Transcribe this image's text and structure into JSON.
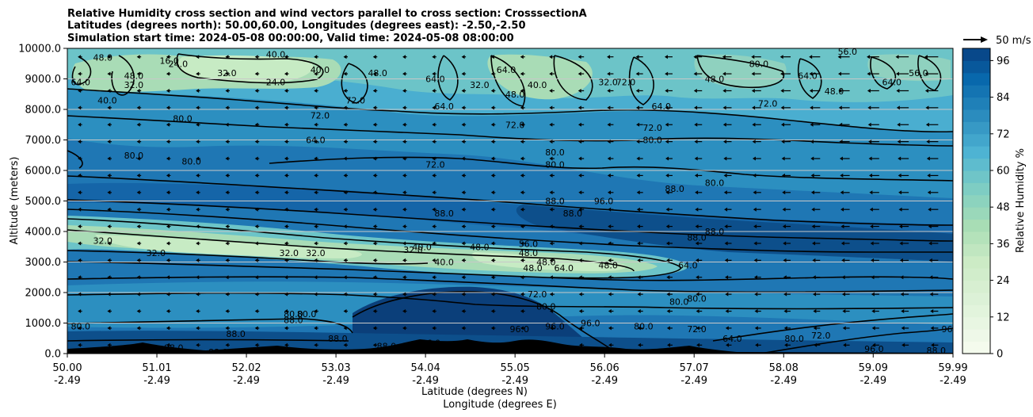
{
  "chart_data": {
    "type": "heatmap",
    "title_lines": [
      "Relative Humidity cross section and wind vectors parallel to cross section: CrosssectionA",
      "Latitudes (degrees north): 50.00,60.00, Longitudes (degrees east): -2.50,-2.50",
      "Simulation start time: 2024-05-08 00:00:00, Valid time: 2024-05-08 08:00:00"
    ],
    "ylabel": "Altitude (meters)",
    "xlabel_lat": "Latitude (degrees N)",
    "xlabel_lon": "Longitude (degrees E)",
    "x_range": [
      50.0,
      59.99
    ],
    "y_range": [
      0,
      10000
    ],
    "x_ticks": [
      {
        "lat": "50.00",
        "lon": "-2.49",
        "v": 50.0
      },
      {
        "lat": "51.01",
        "lon": "-2.49",
        "v": 51.01
      },
      {
        "lat": "52.02",
        "lon": "-2.49",
        "v": 52.02
      },
      {
        "lat": "53.03",
        "lon": "-2.49",
        "v": 53.03
      },
      {
        "lat": "54.04",
        "lon": "-2.49",
        "v": 54.04
      },
      {
        "lat": "55.05",
        "lon": "-2.49",
        "v": 55.05
      },
      {
        "lat": "56.06",
        "lon": "-2.49",
        "v": 56.06
      },
      {
        "lat": "57.07",
        "lon": "-2.49",
        "v": 57.07
      },
      {
        "lat": "58.08",
        "lon": "-2.49",
        "v": 58.08
      },
      {
        "lat": "59.09",
        "lon": "-2.49",
        "v": 59.09
      },
      {
        "lat": "59.99",
        "lon": "-2.49",
        "v": 59.99
      }
    ],
    "y_ticks": [
      {
        "label": "0.0",
        "v": 0
      },
      {
        "label": "1000.0",
        "v": 1000
      },
      {
        "label": "2000.0",
        "v": 2000
      },
      {
        "label": "3000.0",
        "v": 3000
      },
      {
        "label": "4000.0",
        "v": 4000
      },
      {
        "label": "5000.0",
        "v": 5000
      },
      {
        "label": "6000.0",
        "v": 6000
      },
      {
        "label": "7000.0",
        "v": 7000
      },
      {
        "label": "8000.0",
        "v": 8000
      },
      {
        "label": "9000.0",
        "v": 9000
      },
      {
        "label": "10000.0",
        "v": 10000
      }
    ],
    "colorbar": {
      "label": "Relative Humidity %",
      "range": [
        0,
        100
      ],
      "ticks": [
        0,
        12,
        24,
        36,
        48,
        60,
        72,
        84,
        96
      ],
      "levels": 25
    },
    "quiver_key": "50 m/s",
    "contour_labels": [
      {
        "t": "48.0",
        "x": 50.4,
        "y": 9700
      },
      {
        "t": "64.0",
        "x": 50.15,
        "y": 8900
      },
      {
        "t": "40.0",
        "x": 50.45,
        "y": 8300
      },
      {
        "t": "48.0",
        "x": 50.75,
        "y": 9100
      },
      {
        "t": "32.0",
        "x": 50.75,
        "y": 8800
      },
      {
        "t": "16.0",
        "x": 51.15,
        "y": 9600
      },
      {
        "t": "24.0",
        "x": 51.25,
        "y": 9500
      },
      {
        "t": "32.0",
        "x": 51.8,
        "y": 9200
      },
      {
        "t": "40.0",
        "x": 52.35,
        "y": 9800
      },
      {
        "t": "24.0",
        "x": 52.35,
        "y": 8900
      },
      {
        "t": "40.0",
        "x": 52.85,
        "y": 9300
      },
      {
        "t": "72.0",
        "x": 52.85,
        "y": 7800
      },
      {
        "t": "80.0",
        "x": 51.3,
        "y": 7700
      },
      {
        "t": "80.0",
        "x": 50.75,
        "y": 6500
      },
      {
        "t": "80.0",
        "x": 51.4,
        "y": 6300
      },
      {
        "t": "64.0",
        "x": 52.8,
        "y": 7000
      },
      {
        "t": "48.0",
        "x": 53.5,
        "y": 9200
      },
      {
        "t": "64.0",
        "x": 54.15,
        "y": 9000
      },
      {
        "t": "72.0",
        "x": 53.25,
        "y": 8300
      },
      {
        "t": "64.0",
        "x": 54.25,
        "y": 8100
      },
      {
        "t": "32.0",
        "x": 54.65,
        "y": 8800
      },
      {
        "t": "64.0",
        "x": 54.95,
        "y": 9300
      },
      {
        "t": "40.0",
        "x": 55.3,
        "y": 8800
      },
      {
        "t": "48.0",
        "x": 55.05,
        "y": 8500
      },
      {
        "t": "72.0",
        "x": 55.05,
        "y": 7500
      },
      {
        "t": "32.0",
        "x": 56.1,
        "y": 8900
      },
      {
        "t": "72.0",
        "x": 56.3,
        "y": 8900
      },
      {
        "t": "72.0",
        "x": 56.6,
        "y": 7400
      },
      {
        "t": "64.0",
        "x": 56.7,
        "y": 8100
      },
      {
        "t": "80.0",
        "x": 56.6,
        "y": 7000
      },
      {
        "t": "80.0",
        "x": 55.5,
        "y": 6600
      },
      {
        "t": "80.0",
        "x": 55.5,
        "y": 6200
      },
      {
        "t": "72.0",
        "x": 54.15,
        "y": 6200
      },
      {
        "t": "48.0",
        "x": 57.3,
        "y": 9000
      },
      {
        "t": "72.0",
        "x": 57.9,
        "y": 8200
      },
      {
        "t": "80.0",
        "x": 57.8,
        "y": 9500
      },
      {
        "t": "64.0",
        "x": 58.35,
        "y": 9100
      },
      {
        "t": "48.0",
        "x": 58.65,
        "y": 8600
      },
      {
        "t": "56.0",
        "x": 58.8,
        "y": 9900
      },
      {
        "t": "64.0",
        "x": 59.3,
        "y": 8900
      },
      {
        "t": "56.0",
        "x": 59.6,
        "y": 9200
      },
      {
        "t": "80.0",
        "x": 57.3,
        "y": 5600
      },
      {
        "t": "88.0",
        "x": 56.85,
        "y": 5400
      },
      {
        "t": "88.0",
        "x": 55.5,
        "y": 5000
      },
      {
        "t": "88.0",
        "x": 55.7,
        "y": 4600
      },
      {
        "t": "96.0",
        "x": 56.05,
        "y": 5000
      },
      {
        "t": "88.0",
        "x": 54.25,
        "y": 4600
      },
      {
        "t": "88.0",
        "x": 57.3,
        "y": 4000
      },
      {
        "t": "88.0",
        "x": 57.1,
        "y": 3800
      },
      {
        "t": "32.0",
        "x": 50.4,
        "y": 3700
      },
      {
        "t": "32.0",
        "x": 51.0,
        "y": 3300
      },
      {
        "t": "32.0",
        "x": 52.5,
        "y": 3300
      },
      {
        "t": "32.0",
        "x": 52.8,
        "y": 3300
      },
      {
        "t": "32.0",
        "x": 53.9,
        "y": 3400
      },
      {
        "t": "40.0",
        "x": 54.0,
        "y": 3500
      },
      {
        "t": "40.0",
        "x": 54.25,
        "y": 3000
      },
      {
        "t": "48.0",
        "x": 54.65,
        "y": 3500
      },
      {
        "t": "56.0",
        "x": 55.2,
        "y": 3600
      },
      {
        "t": "48.0",
        "x": 55.2,
        "y": 3300
      },
      {
        "t": "48.0",
        "x": 55.4,
        "y": 3000
      },
      {
        "t": "48.0",
        "x": 56.1,
        "y": 2900
      },
      {
        "t": "48.0",
        "x": 55.25,
        "y": 2800
      },
      {
        "t": "64.0",
        "x": 55.6,
        "y": 2800
      },
      {
        "t": "64.0",
        "x": 57.0,
        "y": 2900
      },
      {
        "t": "72.0",
        "x": 55.3,
        "y": 1950
      },
      {
        "t": "80.0",
        "x": 55.4,
        "y": 1550
      },
      {
        "t": "80.0",
        "x": 56.9,
        "y": 1700
      },
      {
        "t": "80.0",
        "x": 57.1,
        "y": 1800
      },
      {
        "t": "80.0",
        "x": 52.55,
        "y": 1300
      },
      {
        "t": "80.0",
        "x": 52.7,
        "y": 1300
      },
      {
        "t": "88.0",
        "x": 52.55,
        "y": 1100
      },
      {
        "t": "88.0",
        "x": 53.05,
        "y": 500
      },
      {
        "t": "80.0",
        "x": 50.15,
        "y": 900
      },
      {
        "t": "88.0",
        "x": 51.9,
        "y": 650
      },
      {
        "t": "96.0",
        "x": 55.1,
        "y": 800
      },
      {
        "t": "96.0",
        "x": 55.5,
        "y": 900
      },
      {
        "t": "96.0",
        "x": 55.9,
        "y": 1000
      },
      {
        "t": "80.0",
        "x": 56.5,
        "y": 900
      },
      {
        "t": "72.0",
        "x": 57.1,
        "y": 800
      },
      {
        "t": "64.0",
        "x": 57.5,
        "y": 500
      },
      {
        "t": "80.0",
        "x": 58.2,
        "y": 500
      },
      {
        "t": "72.0",
        "x": 58.5,
        "y": 600
      },
      {
        "t": "96.0",
        "x": 59.1,
        "y": 150
      },
      {
        "t": "88.0",
        "x": 59.8,
        "y": 100
      },
      {
        "t": "96.0",
        "x": 59.97,
        "y": 800
      },
      {
        "t": "88.0",
        "x": 53.6,
        "y": 250
      },
      {
        "t": "96.0",
        "x": 54.1,
        "y": 350
      },
      {
        "t": "88.0",
        "x": 50.8,
        "y": 200
      },
      {
        "t": "88.0",
        "x": 51.2,
        "y": 200
      },
      {
        "t": "88.0",
        "x": 51.7,
        "y": 50
      }
    ]
  }
}
